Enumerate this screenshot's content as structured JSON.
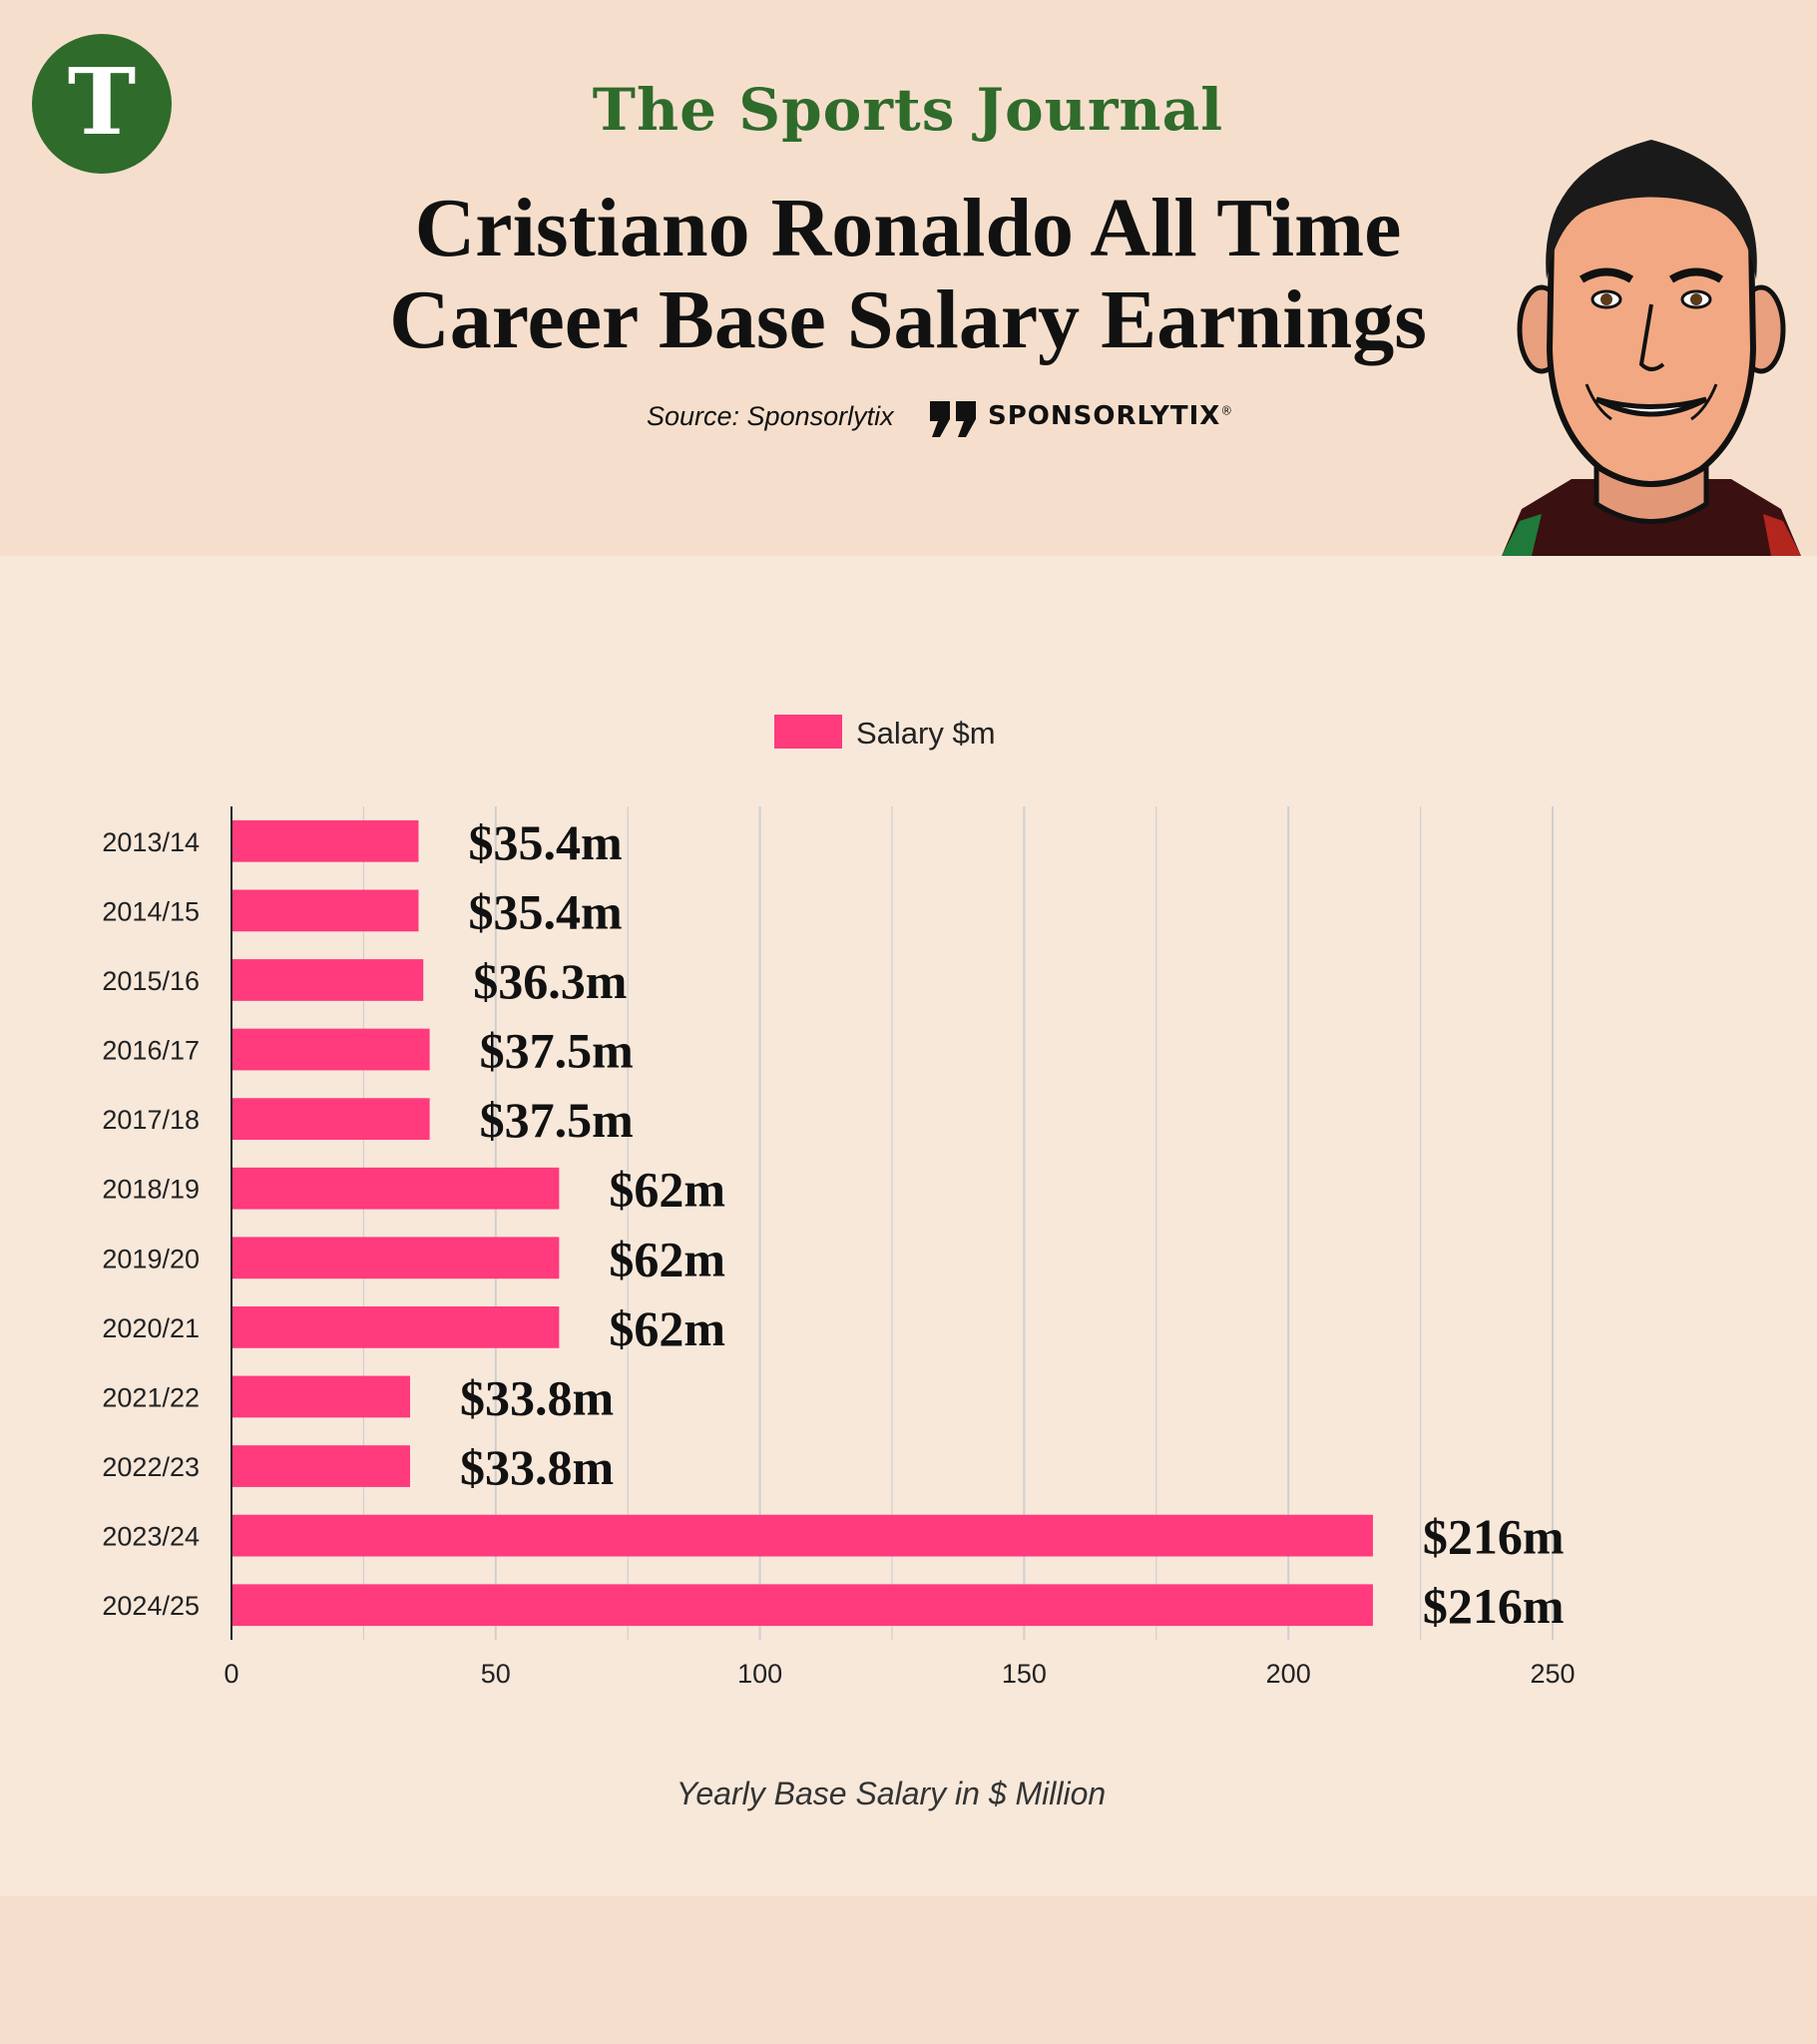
{
  "header": {
    "brand": "The Sports Journal",
    "title_line1": "Cristiano Ronaldo All Time",
    "title_line2": "Career Base Salary Earnings",
    "source": "Source: Sponsorlytix",
    "sponsor_name": "SPONSORLYTIX",
    "sponsor_mark": "®",
    "logo_letter": "T"
  },
  "colors": {
    "bar": "#ff3a7d",
    "brand_green": "#2f6b2b",
    "gridline": "#cfcfcf",
    "header_bg": "#f5dfcc",
    "chart_bg": "#f7e8da"
  },
  "chart_data": {
    "type": "bar",
    "orientation": "horizontal",
    "categories": [
      "2013/14",
      "2014/15",
      "2015/16",
      "2016/17",
      "2017/18",
      "2018/19",
      "2019/20",
      "2020/21",
      "2021/22",
      "2022/23",
      "2023/24",
      "2024/25"
    ],
    "series": [
      {
        "name": "Salary $m",
        "values": [
          35.4,
          35.4,
          36.3,
          37.5,
          37.5,
          62,
          62,
          62,
          33.8,
          33.8,
          216,
          216
        ]
      }
    ],
    "data_labels": [
      "$35.4m",
      "$35.4m",
      "$36.3m",
      "$37.5m",
      "$37.5m",
      "$62m",
      "$62m",
      "$62m",
      "$33.8m",
      "$33.8m",
      "$216m",
      "$216m"
    ],
    "xlabel": "Yearly Base Salary in $ Million",
    "xlim": [
      0,
      250
    ],
    "x_ticks": [
      0,
      50,
      100,
      150,
      200,
      250
    ],
    "grid": true,
    "legend": "top-center"
  }
}
